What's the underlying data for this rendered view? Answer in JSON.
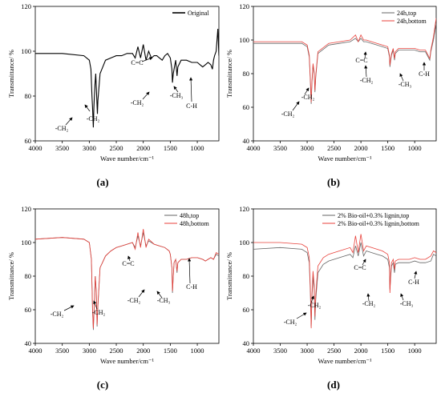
{
  "chart_data": [
    {
      "type": "line",
      "panel_label": "(a)",
      "xlabel": "Wave number/cm⁻¹",
      "ylabel": "Transmittance/ %",
      "xlim": [
        4000,
        600
      ],
      "ylim": [
        60,
        120
      ],
      "x_ticks": [
        4000,
        3500,
        3000,
        2500,
        2000,
        1500,
        1000
      ],
      "y_ticks": [
        60,
        80,
        100,
        120
      ],
      "grid": false,
      "legend_position": "top-right",
      "series": [
        {
          "name": "Original",
          "color": "#000000",
          "x": [
            4000,
            3500,
            3100,
            3000,
            2970,
            2950,
            2940,
            2925,
            2915,
            2895,
            2880,
            2860,
            2850,
            2840,
            2800,
            2700,
            2600,
            2500,
            2400,
            2300,
            2200,
            2150,
            2100,
            2050,
            2000,
            1950,
            1900,
            1850,
            1800,
            1750,
            1700,
            1650,
            1600,
            1550,
            1500,
            1470,
            1460,
            1445,
            1430,
            1400,
            1375,
            1360,
            1300,
            1200,
            1100,
            1000,
            950,
            900,
            850,
            800,
            750,
            720,
            700,
            680,
            650,
            620,
            600
          ],
          "y": [
            99,
            99,
            98,
            96,
            92,
            80,
            75,
            66,
            75,
            85,
            90,
            78,
            72,
            78,
            90,
            96,
            97,
            98,
            98,
            99,
            99,
            97,
            102,
            97,
            103,
            96,
            100,
            97,
            98,
            98,
            97,
            96,
            98,
            99,
            97,
            92,
            86,
            90,
            92,
            96,
            89,
            93,
            96,
            96,
            95,
            95,
            94,
            93,
            94,
            95,
            94,
            92,
            96,
            98,
            100,
            110,
            98
          ]
        }
      ],
      "annotations": [
        "-CH₂",
        "-CH₂",
        "C=C",
        "-CH₂",
        "-CH₃",
        "C-H"
      ]
    },
    {
      "type": "line",
      "panel_label": "(b)",
      "xlabel": "Wave number/cm⁻¹",
      "ylabel": "Transmittance/ %",
      "xlim": [
        4000,
        600
      ],
      "ylim": [
        40,
        120
      ],
      "x_ticks": [
        4000,
        3500,
        3000,
        2500,
        2000,
        1500,
        1000
      ],
      "y_ticks": [
        40,
        60,
        80,
        100,
        120
      ],
      "grid": false,
      "legend_position": "top-right",
      "series": [
        {
          "name": "24h,top",
          "color": "#666666",
          "x": [
            4000,
            3500,
            3100,
            3000,
            2960,
            2940,
            2925,
            2910,
            2890,
            2870,
            2855,
            2840,
            2800,
            2600,
            2400,
            2200,
            2100,
            2050,
            2000,
            1950,
            1900,
            1800,
            1700,
            1600,
            1500,
            1470,
            1460,
            1445,
            1430,
            1400,
            1375,
            1360,
            1300,
            1100,
            1000,
            900,
            800,
            720,
            700,
            650,
            600
          ],
          "y": [
            98,
            98,
            98,
            96,
            90,
            75,
            62,
            75,
            85,
            80,
            69,
            78,
            92,
            97,
            98,
            99,
            101,
            99,
            101,
            99,
            99,
            98,
            97,
            96,
            95,
            90,
            84,
            88,
            91,
            94,
            88,
            92,
            94,
            94,
            94,
            93,
            93,
            88,
            93,
            100,
            110
          ]
        },
        {
          "name": "24h,bottom",
          "color": "#e8413b",
          "x": [
            4000,
            3500,
            3100,
            3000,
            2960,
            2940,
            2925,
            2910,
            2890,
            2870,
            2855,
            2840,
            2800,
            2600,
            2400,
            2200,
            2100,
            2050,
            2000,
            1950,
            1900,
            1800,
            1700,
            1600,
            1500,
            1470,
            1460,
            1445,
            1430,
            1400,
            1375,
            1360,
            1300,
            1100,
            1000,
            900,
            800,
            720,
            700,
            650,
            600
          ],
          "y": [
            99,
            99,
            99,
            97,
            91,
            76,
            63,
            76,
            86,
            81,
            70,
            79,
            93,
            98,
            99,
            100,
            103,
            99,
            103,
            100,
            100,
            99,
            98,
            97,
            96,
            91,
            85,
            89,
            92,
            95,
            89,
            93,
            95,
            95,
            95,
            94,
            94,
            89,
            94,
            102,
            113
          ]
        }
      ],
      "annotations": [
        "C=C",
        "-CH₂",
        "-CH₃",
        "C-H",
        "-CH₂",
        "-CH₂"
      ]
    },
    {
      "type": "line",
      "panel_label": "(c)",
      "xlabel": "Wave number/cm⁻¹",
      "ylabel": "Transmittance/ %",
      "xlim": [
        4000,
        600
      ],
      "ylim": [
        40,
        120
      ],
      "x_ticks": [
        4000,
        3500,
        3000,
        2500,
        2000,
        1500,
        1000
      ],
      "y_ticks": [
        40,
        60,
        80,
        100,
        120
      ],
      "grid": false,
      "legend_position": "top-right",
      "series": [
        {
          "name": "48h,top",
          "color": "#666666",
          "x": [
            4000,
            3500,
            3100,
            3000,
            2960,
            2940,
            2925,
            2910,
            2890,
            2870,
            2855,
            2840,
            2800,
            2700,
            2600,
            2500,
            2400,
            2300,
            2200,
            2150,
            2100,
            2050,
            2000,
            1950,
            1900,
            1800,
            1700,
            1600,
            1520,
            1500,
            1470,
            1460,
            1445,
            1430,
            1400,
            1375,
            1360,
            1300,
            1200,
            1100,
            1000,
            900,
            850,
            800,
            750,
            700,
            650,
            600
          ],
          "y": [
            102,
            103,
            102,
            100,
            90,
            60,
            48,
            60,
            80,
            70,
            50,
            62,
            85,
            92,
            95,
            97,
            98,
            99,
            100,
            97,
            104,
            98,
            106,
            98,
            101,
            99,
            98,
            97,
            95,
            93,
            85,
            70,
            80,
            88,
            90,
            82,
            88,
            90,
            90,
            91,
            91,
            90,
            89,
            90,
            91,
            90,
            93,
            92
          ]
        },
        {
          "name": "48h,bottom",
          "color": "#e8413b",
          "x": [
            4000,
            3500,
            3100,
            3000,
            2960,
            2940,
            2925,
            2910,
            2890,
            2870,
            2855,
            2840,
            2800,
            2700,
            2600,
            2500,
            2400,
            2300,
            2200,
            2150,
            2100,
            2050,
            2000,
            1950,
            1900,
            1800,
            1700,
            1600,
            1520,
            1500,
            1470,
            1460,
            1445,
            1430,
            1400,
            1375,
            1360,
            1300,
            1200,
            1100,
            1000,
            900,
            850,
            800,
            750,
            700,
            650,
            600
          ],
          "y": [
            102,
            103,
            102,
            100,
            90,
            61,
            49,
            61,
            80,
            71,
            51,
            63,
            85,
            92,
            95,
            97,
            98,
            99,
            100,
            96,
            106,
            97,
            108,
            97,
            102,
            99,
            98,
            97,
            95,
            93,
            85,
            71,
            80,
            88,
            90,
            83,
            88,
            90,
            90,
            91,
            91,
            90,
            89,
            90,
            91,
            90,
            94,
            93
          ]
        }
      ],
      "annotations": [
        "C=C",
        "C-H",
        "-CH₂",
        "-CH₃",
        "-CH₂",
        "-CH₂"
      ]
    },
    {
      "type": "line",
      "panel_label": "(d)",
      "xlabel": "Wave number/cm⁻¹",
      "ylabel": "Transmittance/ %",
      "xlim": [
        4000,
        600
      ],
      "ylim": [
        40,
        120
      ],
      "x_ticks": [
        4000,
        3500,
        3000,
        2500,
        2000,
        1500,
        1000
      ],
      "y_ticks": [
        40,
        60,
        80,
        100,
        120
      ],
      "grid": false,
      "legend_position": "top-right",
      "series": [
        {
          "name": "2% Bio-oil+0.3% lignin,top",
          "color": "#666666",
          "x": [
            4000,
            3500,
            3100,
            3000,
            2960,
            2940,
            2925,
            2910,
            2890,
            2870,
            2855,
            2840,
            2800,
            2700,
            2600,
            2400,
            2200,
            2150,
            2100,
            2050,
            2000,
            1950,
            1900,
            1800,
            1700,
            1600,
            1500,
            1470,
            1460,
            1445,
            1430,
            1400,
            1375,
            1360,
            1300,
            1100,
            1000,
            900,
            800,
            700,
            650,
            600
          ],
          "y": [
            96,
            97,
            96,
            94,
            88,
            70,
            50,
            68,
            80,
            72,
            54,
            66,
            82,
            87,
            89,
            91,
            93,
            91,
            98,
            92,
            100,
            92,
            95,
            94,
            93,
            92,
            90,
            85,
            72,
            80,
            86,
            88,
            82,
            87,
            88,
            88,
            89,
            88,
            88,
            89,
            93,
            92
          ]
        },
        {
          "name": "2% Bio-oil+0.3% lignin,bottom",
          "color": "#e8413b",
          "x": [
            4000,
            3500,
            3100,
            3000,
            2960,
            2940,
            2925,
            2910,
            2890,
            2870,
            2855,
            2840,
            2800,
            2700,
            2600,
            2400,
            2200,
            2150,
            2100,
            2050,
            2000,
            1950,
            1900,
            1800,
            1700,
            1600,
            1500,
            1470,
            1460,
            1445,
            1430,
            1400,
            1375,
            1360,
            1300,
            1100,
            1000,
            900,
            800,
            700,
            650,
            600
          ],
          "y": [
            100,
            100,
            99,
            97,
            91,
            72,
            49,
            70,
            83,
            75,
            56,
            69,
            86,
            91,
            93,
            95,
            97,
            94,
            104,
            94,
            105,
            95,
            98,
            97,
            96,
            95,
            93,
            88,
            70,
            82,
            88,
            90,
            84,
            89,
            90,
            90,
            91,
            90,
            90,
            92,
            95,
            94
          ]
        }
      ],
      "annotations": [
        "C=C",
        "-CH₂",
        "-CH₃",
        "C-H",
        "-CH₂",
        "-CH₂"
      ]
    }
  ]
}
